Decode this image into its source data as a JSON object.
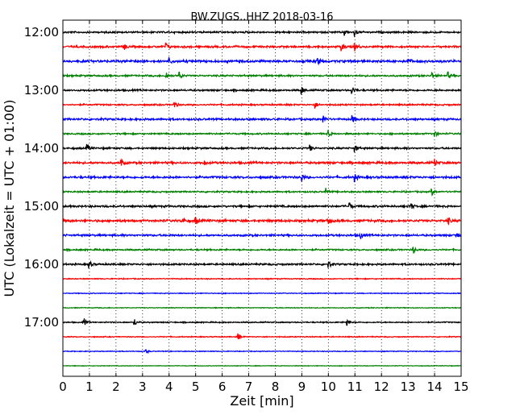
{
  "chart_data": {
    "type": "line",
    "title": "BW.ZUGS..HHZ 2018-03-16",
    "xlabel": "Zeit  [min]",
    "ylabel": "UTC (Lokalzeit = UTC + 01:00)",
    "xlim": [
      0,
      15
    ],
    "x_ticks": [
      "0",
      "1",
      "2",
      "3",
      "4",
      "5",
      "6",
      "7",
      "8",
      "9",
      "10",
      "11",
      "12",
      "13",
      "14",
      "15"
    ],
    "y_ticks": [
      "12:00",
      "13:00",
      "14:00",
      "15:00",
      "16:00",
      "17:00"
    ],
    "grid": "vertical dotted",
    "trace_interval_min": 15,
    "colors": [
      "#000000",
      "#ff0000",
      "#0000ff",
      "#008000"
    ],
    "series": [
      {
        "start": "12:00",
        "events": [
          10.6,
          11.0
        ],
        "noise": 0.9
      },
      {
        "start": "12:15",
        "events": [
          2.3,
          3.9,
          10.5,
          11.0
        ],
        "noise": 1.0
      },
      {
        "start": "12:30",
        "events": [
          4.0,
          9.6,
          13.0
        ],
        "noise": 1.2
      },
      {
        "start": "12:45",
        "events": [
          3.9,
          4.4,
          13.9,
          14.5
        ],
        "noise": 0.9
      },
      {
        "start": "13:00",
        "events": [
          9.0,
          10.9
        ],
        "noise": 0.9
      },
      {
        "start": "13:15",
        "events": [
          4.2,
          9.5
        ],
        "noise": 0.8
      },
      {
        "start": "13:30",
        "events": [
          9.8,
          10.9
        ],
        "noise": 1.0
      },
      {
        "start": "13:45",
        "events": [
          10.0,
          14.0
        ],
        "noise": 0.8
      },
      {
        "start": "14:00",
        "events": [
          0.9,
          9.3,
          11.0
        ],
        "noise": 0.9
      },
      {
        "start": "14:15",
        "events": [
          2.2,
          5.3,
          14.0
        ],
        "noise": 1.1
      },
      {
        "start": "14:30",
        "events": [
          9.0,
          11.0
        ],
        "noise": 1.1
      },
      {
        "start": "14:45",
        "events": [
          9.9,
          13.9
        ],
        "noise": 0.8
      },
      {
        "start": "15:00",
        "events": [
          10.8,
          13.1
        ],
        "noise": 1.0
      },
      {
        "start": "15:15",
        "events": [
          4.5,
          5.0,
          10.0,
          14.5
        ],
        "noise": 1.2
      },
      {
        "start": "15:30",
        "events": [
          11.2,
          14.8
        ],
        "noise": 1.0
      },
      {
        "start": "15:45",
        "events": [
          13.2
        ],
        "noise": 0.8
      },
      {
        "start": "16:00",
        "events": [
          1.0,
          10.0
        ],
        "noise": 0.9
      },
      {
        "start": "16:15",
        "events": [],
        "noise": 0.5
      },
      {
        "start": "16:30",
        "events": [],
        "noise": 0.4
      },
      {
        "start": "16:45",
        "events": [],
        "noise": 0.4
      },
      {
        "start": "17:00",
        "events": [
          0.8,
          2.7,
          10.7
        ],
        "noise": 0.6
      },
      {
        "start": "17:15",
        "events": [
          6.6
        ],
        "noise": 0.5
      },
      {
        "start": "17:30",
        "events": [
          3.1
        ],
        "noise": 0.4
      },
      {
        "start": "17:45",
        "events": [],
        "noise": 0.3
      }
    ]
  }
}
